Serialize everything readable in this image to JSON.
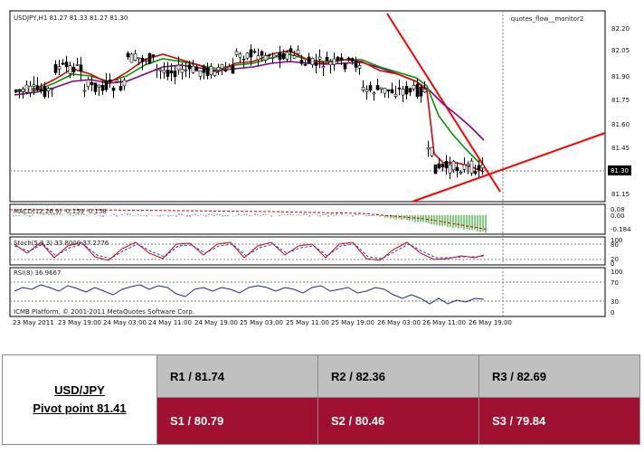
{
  "terminal": {
    "chart_header": "USDJPY,H1  81.27 81.33 81.27 81.30",
    "indicator_tag": "quotes_flow__monitor2",
    "current_price": "81.30",
    "price_ticks": [
      "82.20",
      "82.05",
      "81.90",
      "81.75",
      "81.60",
      "81.45",
      "81.30",
      "81.15"
    ],
    "macd_label": "MACD(12,26,9) -0.159 -0.158",
    "macd_ticks": [
      "0.08",
      "0.00",
      "-0.184"
    ],
    "stoch_label": "Stoch(5,3,3) 33.8000 37.2776",
    "stoch_ticks": [
      "100",
      "80",
      "20",
      "0"
    ],
    "rsi_label": "RSI(8) 36.9667",
    "rsi_ticks": [
      "100",
      "70",
      "30",
      "0"
    ],
    "copyright": "ICMB Platform, © 2001-2011 MetaQuotes Software Corp.",
    "time_ticks": [
      "23 May 2011",
      "23 May 19:00",
      "24 May 03:00",
      "24 May 11:00",
      "24 May 19:00",
      "25 May 03:00",
      "25 May 11:00",
      "25 May 19:00",
      "26 May 03:00",
      "26 May 11:00",
      "26 May 19:00"
    ],
    "colors": {
      "bull_candle": "#ffffff",
      "bear_candle": "#000000",
      "ma_fast": "#e00000",
      "ma_mid": "#009900",
      "ma_slow": "#8b008b",
      "trendline": "#ff0000",
      "rsi_line": "#2222aa",
      "macd_bar": "#00a000"
    }
  },
  "pivot_table": {
    "pair": "USD/JPY",
    "pivot": "Pivot point 81.41",
    "r1": "R1 / 81.74",
    "r2": "R2 / 82.36",
    "r3": "R3 / 82.69",
    "s1": "S1 / 80.79",
    "s2": "S2 / 80.46",
    "s3": "S3 / 79.84",
    "colors": {
      "resistance_bg": "#c0c0c0",
      "support_bg": "#a01030"
    }
  }
}
